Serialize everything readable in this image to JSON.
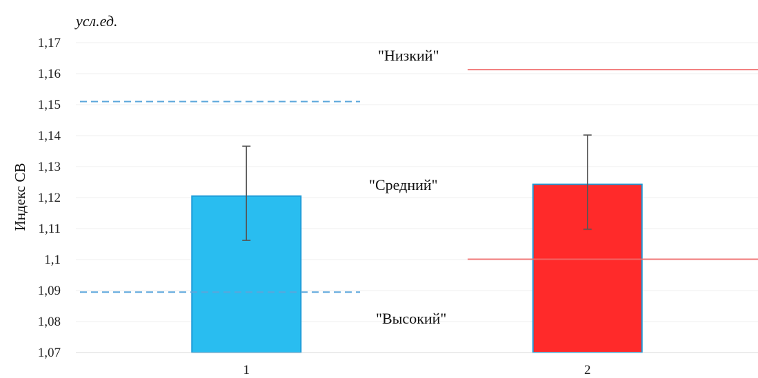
{
  "chart_data": {
    "type": "bar",
    "unit_label": "усл.ед.",
    "ylabel": "Индекс СВ",
    "categories": [
      "1",
      "2"
    ],
    "values": [
      1.1205,
      1.1243
    ],
    "errors": [
      {
        "low": 1.1062,
        "high": 1.1366
      },
      {
        "low": 1.1098,
        "high": 1.1402
      }
    ],
    "bar_colors": [
      "#29BDF0",
      "#FF2A2A"
    ],
    "bar_edge_colors": [
      "#1E9CD8",
      "#1E9CD8"
    ],
    "ylim": [
      1.07,
      1.17
    ],
    "yticks": [
      "1,07",
      "1,08",
      "1,09",
      "1,1",
      "1,11",
      "1,12",
      "1,13",
      "1,14",
      "1,15",
      "1,16",
      "1,17"
    ],
    "ytick_values": [
      1.07,
      1.08,
      1.09,
      1.1,
      1.11,
      1.12,
      1.13,
      1.14,
      1.15,
      1.16,
      1.17
    ],
    "grid": true,
    "reference_lines": [
      {
        "category": "1",
        "value": 1.151,
        "style": "dashed",
        "color": "#5AA6DB"
      },
      {
        "category": "1",
        "value": 1.0895,
        "style": "dashed",
        "color": "#5AA6DB"
      },
      {
        "category": "2",
        "value": 1.1613,
        "style": "solid",
        "color": "#F06A6A"
      },
      {
        "category": "2",
        "value": 1.1001,
        "style": "solid",
        "color": "#F06A6A"
      }
    ],
    "annotations": [
      "\"Низкий\"",
      "\"Средний\"",
      "\"Высокий\""
    ]
  }
}
